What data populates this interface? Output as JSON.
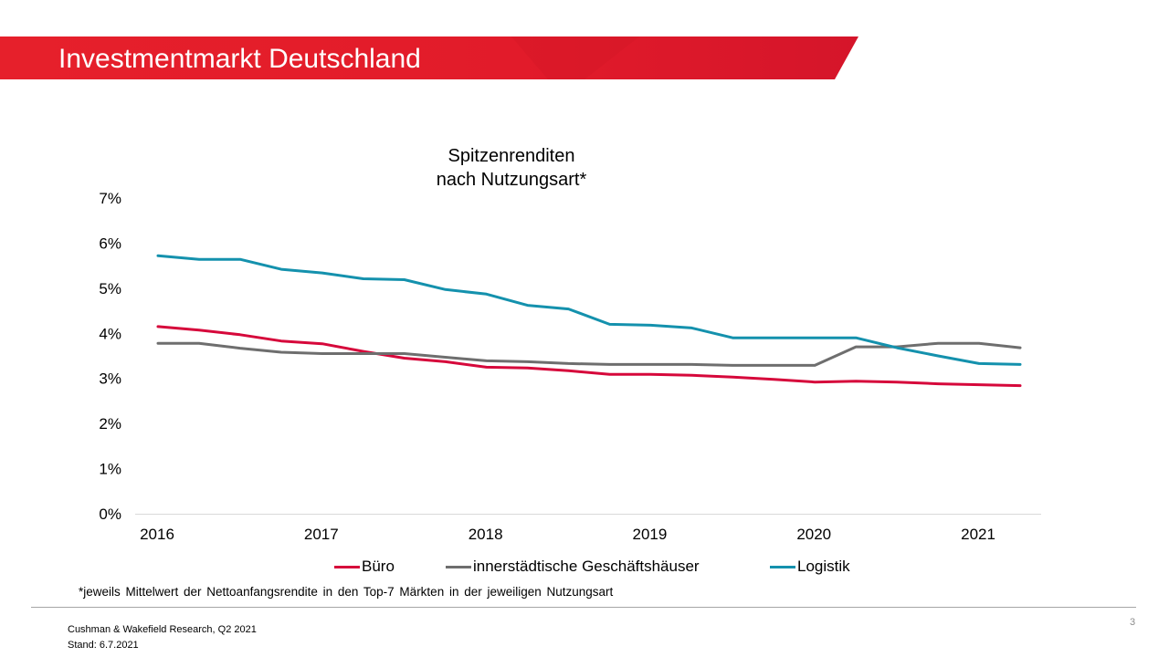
{
  "slide": {
    "title": "Investmentmarkt Deutschland",
    "footnote": "*jeweils Mittelwert der Nettoanfangsrendite in den Top-7 Märkten in der jeweiligen Nutzungsart",
    "source_line1": "Cushman & Wakefield Research, Q2 2021",
    "source_line2": "Stand: 6.7.2021",
    "page_number": "3",
    "accent_color": "#e30613"
  },
  "chart_data": {
    "type": "line",
    "title_line1": "Spitzenrenditen",
    "title_line2": "nach Nutzungsart*",
    "x_tick_labels": [
      "2016",
      "2017",
      "2018",
      "2019",
      "2020",
      "2021"
    ],
    "x_quarters": [
      "Q1 2016",
      "Q2 2016",
      "Q3 2016",
      "Q4 2016",
      "Q1 2017",
      "Q2 2017",
      "Q3 2017",
      "Q4 2017",
      "Q1 2018",
      "Q2 2018",
      "Q3 2018",
      "Q4 2018",
      "Q1 2019",
      "Q2 2019",
      "Q3 2019",
      "Q4 2019",
      "Q1 2020",
      "Q2 2020",
      "Q3 2020",
      "Q4 2020",
      "Q1 2021",
      "Q2 2021"
    ],
    "y_tick_labels": [
      "0%",
      "1%",
      "2%",
      "3%",
      "4%",
      "5%",
      "6%",
      "7%"
    ],
    "ylim": [
      0,
      7
    ],
    "series": [
      {
        "name": "Büro",
        "color": "#d6083b",
        "values": [
          4.15,
          4.07,
          3.97,
          3.83,
          3.77,
          3.6,
          3.45,
          3.37,
          3.25,
          3.23,
          3.17,
          3.09,
          3.09,
          3.07,
          3.03,
          2.98,
          2.92,
          2.94,
          2.92,
          2.88,
          2.86,
          2.84
        ]
      },
      {
        "name": "innerstädtische Geschäftshäuser",
        "color": "#6e6e6e",
        "values": [
          3.78,
          3.78,
          3.67,
          3.58,
          3.55,
          3.55,
          3.55,
          3.47,
          3.39,
          3.37,
          3.33,
          3.31,
          3.31,
          3.31,
          3.29,
          3.29,
          3.29,
          3.7,
          3.7,
          3.78,
          3.78,
          3.68
        ]
      },
      {
        "name": "Logistik",
        "color": "#1491ad",
        "values": [
          5.72,
          5.64,
          5.64,
          5.42,
          5.34,
          5.21,
          5.19,
          4.97,
          4.87,
          4.62,
          4.54,
          4.2,
          4.18,
          4.12,
          3.9,
          3.9,
          3.9,
          3.9,
          3.68,
          3.5,
          3.33,
          3.31
        ]
      }
    ]
  }
}
